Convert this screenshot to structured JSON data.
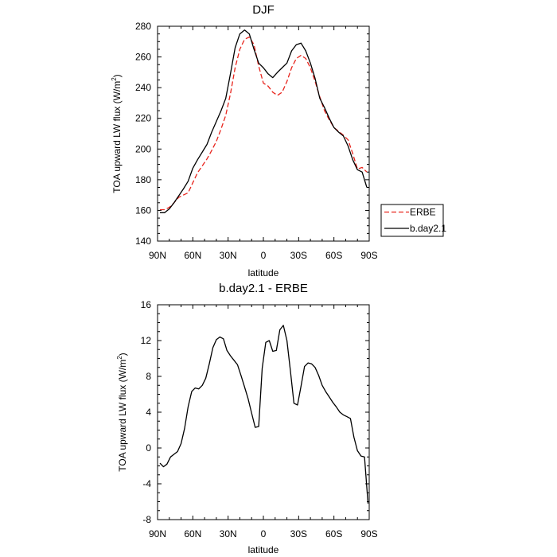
{
  "chart_data": [
    {
      "type": "line",
      "title": "DJF",
      "xlabel": "latitude",
      "ylabel": "TOA upward LW flux (W/m",
      "ylabel_sup": "2",
      "ylabel_close": ")",
      "xlim": [
        90,
        -90
      ],
      "ylim": [
        140,
        280
      ],
      "xticks": [
        {
          "value": 90,
          "label": "90N"
        },
        {
          "value": 60,
          "label": "60N"
        },
        {
          "value": 30,
          "label": "30N"
        },
        {
          "value": 0,
          "label": "0"
        },
        {
          "value": -30,
          "label": "30S"
        },
        {
          "value": -60,
          "label": "60S"
        },
        {
          "value": -90,
          "label": "90S"
        }
      ],
      "yticks": [
        140,
        160,
        180,
        200,
        220,
        240,
        260,
        280
      ],
      "legend": {
        "position": "right",
        "entries": [
          "ERBE",
          "b.day2.1"
        ]
      },
      "series": [
        {
          "name": "ERBE",
          "color": "#e8241c",
          "dash": true,
          "x": [
            88,
            84,
            80,
            76,
            72,
            68,
            64,
            60,
            56,
            52,
            48,
            44,
            40,
            36,
            32,
            28,
            24,
            20,
            16,
            12,
            8,
            4,
            0,
            -4,
            -8,
            -12,
            -16,
            -20,
            -24,
            -28,
            -32,
            -36,
            -40,
            -44,
            -48,
            -52,
            -56,
            -60,
            -64,
            -68,
            -72,
            -76,
            -80,
            -84,
            -88
          ],
          "values": [
            160.5,
            160.5,
            162,
            165,
            168.5,
            170,
            171.5,
            178,
            184.5,
            189,
            193.5,
            199,
            205,
            213,
            222,
            236,
            253,
            265,
            271.5,
            273,
            268,
            254,
            243,
            241,
            237,
            235,
            237,
            244,
            253,
            259,
            261,
            259,
            253,
            244,
            234,
            225,
            219,
            214,
            211.5,
            209,
            206,
            197,
            187,
            188,
            185
          ]
        },
        {
          "name": "b.day2.1",
          "color": "#000000",
          "dash": false,
          "x": [
            88,
            84,
            80,
            76,
            72,
            68,
            64,
            60,
            56,
            52,
            48,
            44,
            40,
            36,
            32,
            28,
            24,
            20,
            16,
            12,
            8,
            4,
            0,
            -4,
            -8,
            -12,
            -16,
            -20,
            -24,
            -28,
            -32,
            -36,
            -40,
            -44,
            -48,
            -52,
            -56,
            -60,
            -64,
            -68,
            -72,
            -76,
            -80,
            -84,
            -88
          ],
          "values": [
            158.5,
            158.5,
            161,
            165,
            169.5,
            174,
            179,
            187.5,
            193,
            198,
            203,
            211,
            218,
            225,
            233,
            249,
            266,
            275,
            277.5,
            275,
            265,
            256,
            253,
            249,
            246.5,
            250,
            253,
            256,
            264,
            268,
            269,
            264,
            256,
            246,
            233,
            227,
            220,
            214,
            211,
            208.5,
            202,
            193,
            186.5,
            185,
            175
          ]
        }
      ]
    },
    {
      "type": "line",
      "title": "b.day2.1 - ERBE",
      "xlabel": "latitude",
      "ylabel": "TOA upward LW flux (W/m",
      "ylabel_sup": "2",
      "ylabel_close": ")",
      "xlim": [
        90,
        -90
      ],
      "ylim": [
        -8,
        16
      ],
      "xticks": [
        {
          "value": 90,
          "label": "90N"
        },
        {
          "value": 60,
          "label": "60N"
        },
        {
          "value": 30,
          "label": "30N"
        },
        {
          "value": 0,
          "label": "0"
        },
        {
          "value": -30,
          "label": "30S"
        },
        {
          "value": -60,
          "label": "60S"
        },
        {
          "value": -90,
          "label": "90S"
        }
      ],
      "yticks": [
        -8,
        -4,
        0,
        4,
        8,
        12,
        16
      ],
      "series": [
        {
          "name": "b.day2.1 - ERBE",
          "color": "#000000",
          "dash": false,
          "x": [
            88,
            85,
            82,
            79,
            76,
            73,
            70,
            67,
            64,
            61,
            58,
            55,
            52,
            49,
            46,
            43,
            40,
            37,
            34,
            31,
            28,
            25,
            22,
            19,
            16,
            13,
            10,
            7,
            4,
            1,
            -2,
            -5,
            -8,
            -11,
            -14,
            -17,
            -20,
            -23,
            -26,
            -29,
            -32,
            -35,
            -38,
            -41,
            -44,
            -47,
            -50,
            -53,
            -56,
            -59,
            -62,
            -65,
            -68,
            -71,
            -74,
            -77,
            -80,
            -83,
            -86,
            -89
          ],
          "values": [
            -1.7,
            -2.1,
            -1.8,
            -1.0,
            -0.7,
            -0.4,
            0.5,
            2.2,
            4.6,
            6.3,
            6.7,
            6.6,
            7.0,
            7.8,
            9.4,
            11.2,
            12.1,
            12.4,
            12.2,
            10.9,
            10.3,
            9.8,
            9.3,
            8.1,
            6.8,
            5.5,
            3.9,
            2.3,
            2.4,
            8.9,
            11.8,
            12.0,
            10.8,
            10.9,
            13.2,
            13.7,
            12.0,
            8.6,
            5.0,
            4.8,
            6.9,
            9.1,
            9.5,
            9.4,
            9.0,
            8.1,
            7.0,
            6.3,
            5.7,
            5.1,
            4.6,
            4.0,
            3.7,
            3.5,
            3.3,
            1.2,
            -0.3,
            -0.9,
            -1.0,
            -6.2
          ]
        }
      ]
    }
  ]
}
